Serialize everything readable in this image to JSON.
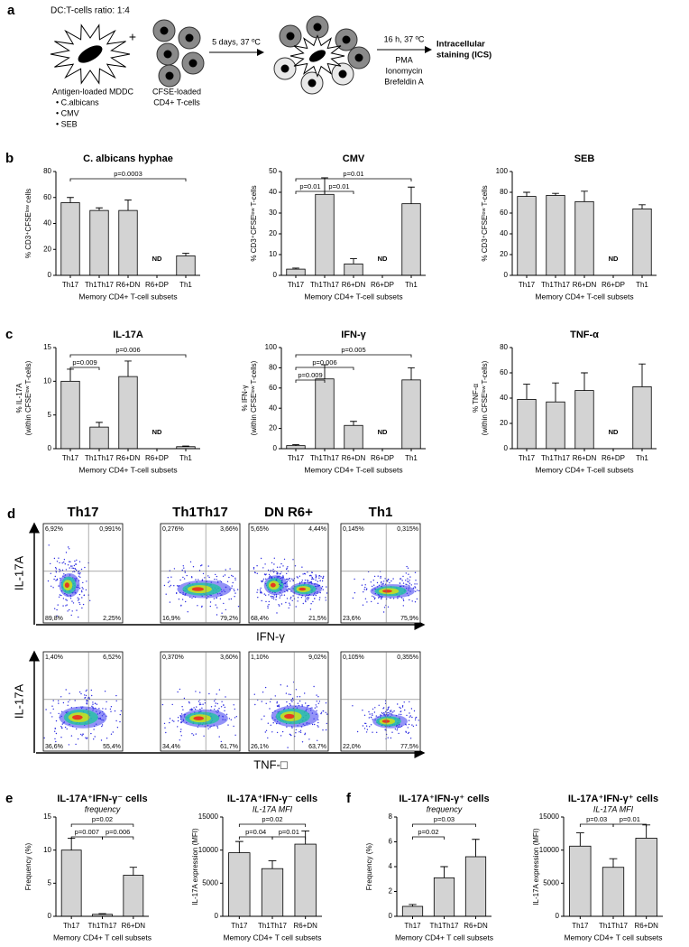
{
  "panel_a": {
    "letter": "a",
    "ratio": "DC:T-cells ratio: 1:4",
    "plus": "+",
    "mddc": [
      "Antigen-loaded MDDC",
      "• C.albicans",
      "• CMV",
      "• SEB"
    ],
    "tcells": [
      "CFSE-loaded",
      "CD4+ T-cells"
    ],
    "step1": "5 days, 37 ºC",
    "step2": "16 h, 37 ºC",
    "stimuli": [
      "PMA",
      "Ionomycin",
      "Brefeldin A"
    ],
    "result": [
      "Intracellular",
      "staining (ICS)"
    ]
  },
  "panel_d": {
    "letter": "d",
    "columns": [
      "Th17",
      "Th1Th17",
      "DN R6+",
      "Th1"
    ],
    "rows": [
      {
        "y_label": "IL-17A",
        "x_label": "IFN-γ",
        "quadrants": [
          [
            "6,92%",
            "0,991%",
            "89,8%",
            "2,25%"
          ],
          [
            "0,276%",
            "3,66%",
            "16,9%",
            "79,2%"
          ],
          [
            "5,65%",
            "4,44%",
            "68,4%",
            "21,5%"
          ],
          [
            "0,145%",
            "0,315%",
            "23,6%",
            "75,9%"
          ]
        ]
      },
      {
        "y_label": "IL-17A",
        "x_label": "TNF-□",
        "quadrants": [
          [
            "1,40%",
            "6,52%",
            "36,6%",
            "55,4%"
          ],
          [
            "0,370%",
            "3,60%",
            "34,4%",
            "61,7%"
          ],
          [
            "1,10%",
            "9,02%",
            "26,1%",
            "63,7%"
          ],
          [
            "0,105%",
            "0,355%",
            "22,0%",
            "77,5%"
          ]
        ]
      }
    ]
  },
  "chart_data": [
    {
      "type": "bar",
      "panel": "b",
      "title": "C. albicans hyphae",
      "ylabel": [
        "% CD3⁺CFSEˡᵒʷ cells"
      ],
      "xlabel": "Memory CD4+ T-cell subsets",
      "categories": [
        "Th17",
        "Th1Th17",
        "R6+DN",
        "R6+DP",
        "Th1"
      ],
      "values": [
        56,
        50,
        50,
        null,
        15
      ],
      "errors": [
        4,
        2,
        8,
        null,
        2
      ],
      "ylim": [
        0,
        80
      ],
      "yticks": [
        0,
        20,
        40,
        60,
        80
      ],
      "color": "#d3d3d3",
      "brackets": [
        {
          "text": "p=0.0003",
          "from": "Th17",
          "to": "Th1"
        }
      ],
      "annotations": [
        {
          "text": "ND",
          "at": "R6+DP"
        }
      ]
    },
    {
      "type": "bar",
      "title": "CMV",
      "ylabel": [
        "% CD3⁺CFSEˡᵒʷ T-cells"
      ],
      "xlabel": "Memory CD4+ T-cell subsets",
      "categories": [
        "Th17",
        "Th1Th17",
        "R6+DN",
        "R6+DP",
        "Th1"
      ],
      "values": [
        3,
        39,
        5.5,
        null,
        34.5
      ],
      "errors": [
        0.5,
        8,
        2.5,
        null,
        8
      ],
      "ylim": [
        0,
        50
      ],
      "yticks": [
        0,
        10,
        20,
        30,
        40,
        50
      ],
      "color": "#d3d3d3",
      "brackets": [
        {
          "text": "p=0.01",
          "from": "Th17",
          "to": "Th1Th17"
        },
        {
          "text": "p=0.01",
          "from": "Th1Th17",
          "to": "R6+DN"
        },
        {
          "text": "p=0.01",
          "from": "Th17",
          "to": "Th1"
        }
      ],
      "annotations": [
        {
          "text": "ND",
          "at": "R6+DP"
        }
      ]
    },
    {
      "type": "bar",
      "title": "SEB",
      "ylabel": [
        "% CD3⁺CFSEˡᵒʷ T-cells"
      ],
      "xlabel": "Memory CD4+ T-cell subsets",
      "categories": [
        "Th17",
        "Th1Th17",
        "R6+DN",
        "R6+DP",
        "Th1"
      ],
      "values": [
        76,
        77,
        71,
        null,
        64
      ],
      "errors": [
        4,
        2,
        10,
        null,
        4
      ],
      "ylim": [
        0,
        100
      ],
      "yticks": [
        0,
        20,
        40,
        60,
        80,
        100
      ],
      "color": "#d3d3d3",
      "brackets": [],
      "annotations": [
        {
          "text": "ND",
          "at": "R6+DP"
        }
      ]
    },
    {
      "type": "bar",
      "panel": "c",
      "title": "IL-17A",
      "ylabel": [
        "% IL-17A",
        "(within CFSEˡᵒʷ T-cells)"
      ],
      "xlabel": "Memory CD4+ T-cell subsets",
      "categories": [
        "Th17",
        "Th1Th17",
        "R6+DN",
        "R6+DP",
        "Th1"
      ],
      "values": [
        10,
        3.2,
        10.7,
        null,
        0.3
      ],
      "errors": [
        1.8,
        0.7,
        2.3,
        null,
        0.1
      ],
      "ylim": [
        0,
        15
      ],
      "yticks": [
        0,
        5,
        10,
        15
      ],
      "color": "#d3d3d3",
      "brackets": [
        {
          "text": "p=0.009",
          "from": "Th17",
          "to": "Th1Th17"
        },
        {
          "text": "p=0.006",
          "from": "Th17",
          "to": "Th1"
        }
      ],
      "annotations": [
        {
          "text": "ND",
          "at": "R6+DP"
        }
      ]
    },
    {
      "type": "bar",
      "title": "IFN-γ",
      "ylabel": [
        "% IFN-γ",
        "(within CFSEˡᵒʷ T-cells)"
      ],
      "xlabel": "Memory CD4+ T-cell subsets",
      "categories": [
        "Th17",
        "Th1Th17",
        "R6+DN",
        "R6+DP",
        "Th1"
      ],
      "values": [
        3,
        69,
        23,
        null,
        68
      ],
      "errors": [
        1,
        14,
        4,
        null,
        12
      ],
      "ylim": [
        0,
        100
      ],
      "yticks": [
        0,
        20,
        40,
        60,
        80,
        100
      ],
      "color": "#d3d3d3",
      "brackets": [
        {
          "text": "p=0.009",
          "from": "Th17",
          "to": "Th1Th17"
        },
        {
          "text": "p=0.006",
          "from": "Th17",
          "to": "R6+DN"
        },
        {
          "text": "p=0.005",
          "from": "Th17",
          "to": "Th1"
        }
      ],
      "annotations": [
        {
          "text": "ND",
          "at": "R6+DP"
        }
      ]
    },
    {
      "type": "bar",
      "title": "TNF-α",
      "ylabel": [
        "% TNF-α",
        "(within CFSEˡᵒʷ T-cells)"
      ],
      "xlabel": "Memory CD4+ T-cell subsets",
      "categories": [
        "Th17",
        "Th1Th17",
        "R6+DN",
        "R6+DP",
        "Th1"
      ],
      "values": [
        39,
        37,
        46,
        null,
        49
      ],
      "errors": [
        12,
        15,
        14,
        null,
        18
      ],
      "ylim": [
        0,
        80
      ],
      "yticks": [
        0,
        20,
        40,
        60,
        80
      ],
      "color": "#d3d3d3",
      "brackets": [],
      "annotations": [
        {
          "text": "ND",
          "at": "R6+DP"
        }
      ]
    },
    {
      "type": "bar",
      "panel": "e",
      "title": "IL-17A⁺IFN-γ⁻ cells",
      "subtitle": "frequency",
      "ylabel": [
        "Frequency (%)"
      ],
      "xlabel": "Memory CD4+ T cell subsets",
      "categories": [
        "Th17",
        "Th1Th17",
        "R6+DN"
      ],
      "values": [
        10,
        0.3,
        6.2
      ],
      "errors": [
        1.8,
        0.1,
        1.2
      ],
      "ylim": [
        0,
        15
      ],
      "yticks": [
        0,
        5,
        10,
        15
      ],
      "color": "#d3d3d3",
      "brackets": [
        {
          "text": "p=0.007",
          "from": "Th17",
          "to": "Th1Th17"
        },
        {
          "text": "p=0.006",
          "from": "Th1Th17",
          "to": "R6+DN"
        },
        {
          "text": "p=0.02",
          "from": "Th17",
          "to": "R6+DN"
        }
      ],
      "annotations": []
    },
    {
      "type": "bar",
      "title": "IL-17A⁺IFN-γ⁻ cells",
      "subtitle": "IL-17A MFI",
      "ylabel": [
        "IL-17A expression (MFI)"
      ],
      "xlabel": "Memory CD4+ T cell subsets",
      "categories": [
        "Th17",
        "Th1Th17",
        "R6+DN"
      ],
      "values": [
        9600,
        7200,
        10900
      ],
      "errors": [
        1700,
        1200,
        2000
      ],
      "ylim": [
        0,
        15000
      ],
      "yticks": [
        0,
        5000,
        10000,
        15000
      ],
      "color": "#d3d3d3",
      "brackets": [
        {
          "text": "p=0.04",
          "from": "Th17",
          "to": "Th1Th17"
        },
        {
          "text": "p=0.01",
          "from": "Th1Th17",
          "to": "R6+DN"
        },
        {
          "text": "p=0.02",
          "from": "Th17",
          "to": "R6+DN"
        }
      ],
      "annotations": []
    },
    {
      "type": "bar",
      "panel": "f",
      "title": "IL-17A⁺IFN-γ⁺ cells",
      "subtitle": "frequency",
      "ylabel": [
        "Frequency (%)"
      ],
      "xlabel": "Memory CD4+ T cell subsets",
      "categories": [
        "Th17",
        "Th1Th17",
        "R6+DN"
      ],
      "values": [
        0.8,
        3.1,
        4.8
      ],
      "errors": [
        0.15,
        0.9,
        1.4
      ],
      "ylim": [
        0,
        8
      ],
      "yticks": [
        0,
        2,
        4,
        6,
        8
      ],
      "color": "#d3d3d3",
      "brackets": [
        {
          "text": "p=0.02",
          "from": "Th17",
          "to": "Th1Th17"
        },
        {
          "text": "p=0.03",
          "from": "Th17",
          "to": "R6+DN"
        }
      ],
      "annotations": []
    },
    {
      "type": "bar",
      "title": "IL-17A⁺IFN-γ⁺ cells",
      "subtitle": "IL-17A MFI",
      "ylabel": [
        "IL-17A expression (MFI)"
      ],
      "xlabel": "Memory CD4+ T cell subsets",
      "categories": [
        "Th17",
        "Th1Th17",
        "R6+DN"
      ],
      "values": [
        10600,
        7400,
        11800
      ],
      "errors": [
        2000,
        1300,
        2000
      ],
      "ylim": [
        0,
        15000
      ],
      "yticks": [
        0,
        5000,
        10000,
        15000
      ],
      "color": "#d3d3d3",
      "brackets": [
        {
          "text": "p=0.03",
          "from": "Th17",
          "to": "Th1Th17"
        },
        {
          "text": "p=0.01",
          "from": "Th1Th17",
          "to": "R6+DN"
        }
      ],
      "annotations": []
    }
  ]
}
